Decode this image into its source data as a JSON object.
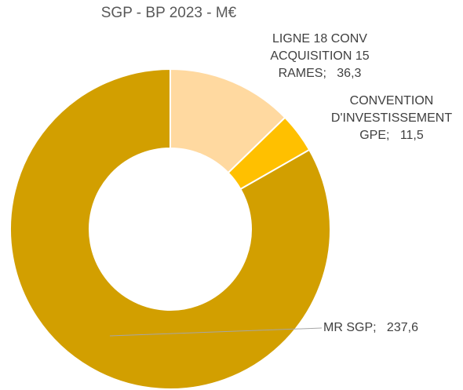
{
  "chart_data": {
    "type": "pie",
    "donut": true,
    "title": "SGP - BP 2023 - M€",
    "categories": [
      "LIGNE 18 CONV ACQUISITION 15 RAMES",
      "CONVENTION D'INVESTISSEMENT GPE",
      "MR SGP"
    ],
    "values": [
      36.3,
      11.5,
      237.6
    ],
    "value_labels": [
      "36,3",
      "11,5",
      "237,6"
    ],
    "label_separator": ";",
    "colors": [
      "#FFD9A0",
      "#FFC000",
      "#D29F00"
    ]
  }
}
